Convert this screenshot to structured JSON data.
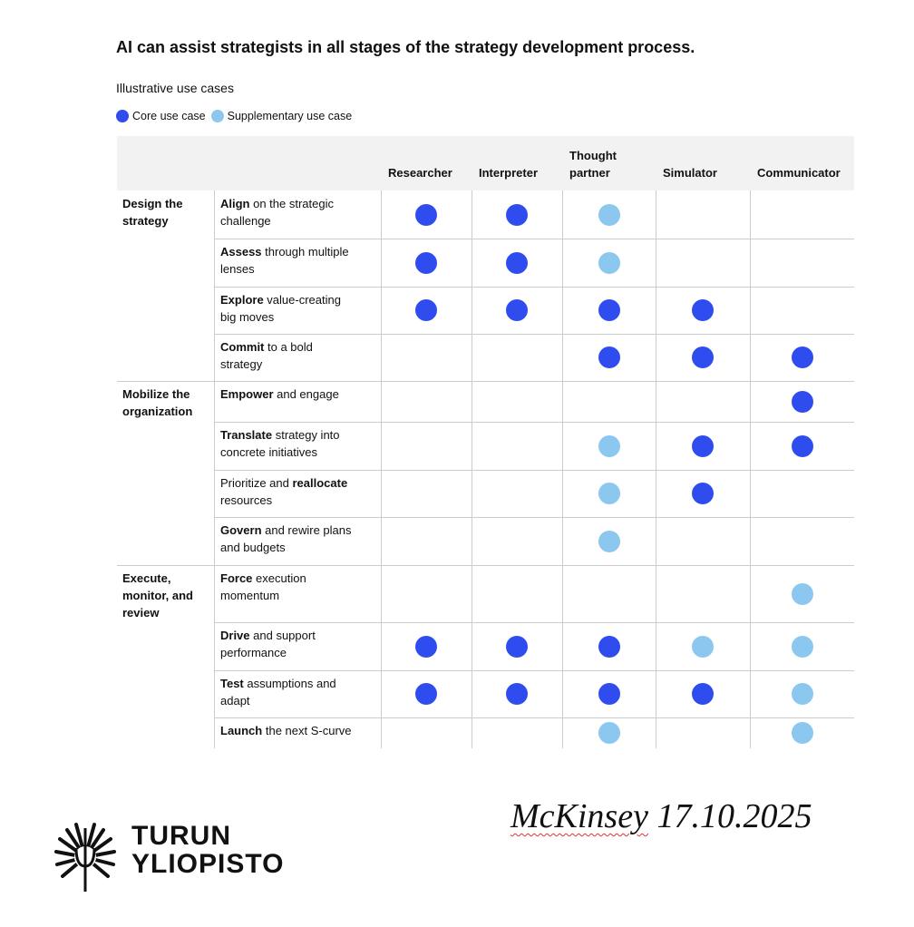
{
  "title": "AI can assist strategists in all stages of the strategy development process.",
  "subtitle": "Illustrative use cases",
  "legend": [
    {
      "label": "Core use case",
      "color": "#2f4cef"
    },
    {
      "label": "Supplementary use case",
      "color": "#8cc7ef"
    }
  ],
  "table": {
    "columns": [
      "Researcher",
      "Interpreter",
      "Thought partner",
      "Simulator",
      "Communicator"
    ],
    "groups": [
      {
        "label": "Design the strategy",
        "rows": [
          {
            "parts": [
              {
                "text": "Align",
                "bold": true
              },
              {
                "text": " on the strategic challenge",
                "bold": false
              }
            ],
            "cells": [
              0,
              0,
              1,
              null,
              null
            ]
          },
          {
            "parts": [
              {
                "text": "Assess",
                "bold": true
              },
              {
                "text": " through multiple lenses",
                "bold": false
              }
            ],
            "cells": [
              0,
              0,
              1,
              null,
              null
            ]
          },
          {
            "parts": [
              {
                "text": "Explore",
                "bold": true
              },
              {
                "text": " value-creating big moves",
                "bold": false
              }
            ],
            "cells": [
              0,
              0,
              0,
              0,
              null
            ]
          },
          {
            "parts": [
              {
                "text": "Commit",
                "bold": true
              },
              {
                "text": " to a bold strategy",
                "bold": false
              }
            ],
            "cells": [
              null,
              null,
              0,
              0,
              0
            ]
          }
        ]
      },
      {
        "label": "Mobilize the organization",
        "rows": [
          {
            "parts": [
              {
                "text": "Empower",
                "bold": true
              },
              {
                "text": " and engage",
                "bold": false
              }
            ],
            "cells": [
              null,
              null,
              null,
              null,
              0
            ]
          },
          {
            "parts": [
              {
                "text": "Translate",
                "bold": true
              },
              {
                "text": " strategy into concrete initiatives",
                "bold": false
              }
            ],
            "cells": [
              null,
              null,
              1,
              0,
              0
            ]
          },
          {
            "parts": [
              {
                "text": "Prioritize and ",
                "bold": false
              },
              {
                "text": "reallocate",
                "bold": true
              },
              {
                "text": " resources",
                "bold": false
              }
            ],
            "cells": [
              null,
              null,
              1,
              0,
              null
            ]
          },
          {
            "parts": [
              {
                "text": "Govern",
                "bold": true
              },
              {
                "text": " and rewire plans and budgets",
                "bold": false
              }
            ],
            "cells": [
              null,
              null,
              1,
              null,
              null
            ]
          }
        ]
      },
      {
        "label": "Execute, monitor, and review",
        "rows": [
          {
            "parts": [
              {
                "text": "Force",
                "bold": true
              },
              {
                "text": " execution momentum",
                "bold": false
              }
            ],
            "cells": [
              null,
              null,
              null,
              null,
              1
            ]
          },
          {
            "parts": [
              {
                "text": "Drive",
                "bold": true
              },
              {
                "text": " and support performance",
                "bold": false
              }
            ],
            "cells": [
              0,
              0,
              0,
              1,
              1
            ]
          },
          {
            "parts": [
              {
                "text": "Test",
                "bold": true
              },
              {
                "text": " assumptions and adapt",
                "bold": false
              }
            ],
            "cells": [
              0,
              0,
              0,
              0,
              1
            ]
          },
          {
            "parts": [
              {
                "text": "Launch",
                "bold": true
              },
              {
                "text": " the next S-curve",
                "bold": false
              }
            ],
            "cells": [
              null,
              null,
              1,
              null,
              1
            ]
          }
        ]
      }
    ]
  },
  "footer": {
    "logo_lines": [
      "TURUN",
      "YLIOPISTO"
    ],
    "note_word": "McKinsey",
    "note_date": "17.10.2025"
  }
}
